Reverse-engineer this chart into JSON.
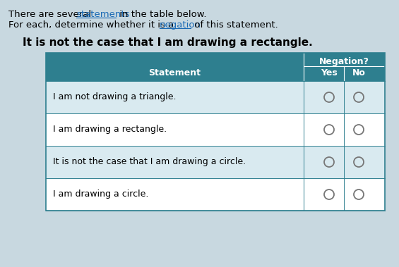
{
  "intro_line1": "There are several ",
  "intro_link1": "statements",
  "intro_mid1": " in the table below.",
  "intro_line2": "For each, determine whether it is a ",
  "intro_link2": "negation",
  "intro_mid2": " of this statement.",
  "bold_statement": "It is not the case that I am drawing a rectangle.",
  "header_bg": "#2e7f8f",
  "header_text_color": "#ffffff",
  "row_bg_light": "#d9eaf0",
  "row_bg_white": "#ffffff",
  "table_border": "#2e7f8f",
  "statements": [
    "I am not drawing a triangle.",
    "I am drawing a rectangle.",
    "It is not the case that I am drawing a circle.",
    "I am drawing a circle."
  ],
  "col_header_statement": "Statement",
  "col_header_negation": "Negation?",
  "col_yes": "Yes",
  "col_no": "No",
  "circle_color": "#777777",
  "page_bg": "#c8d8e0"
}
